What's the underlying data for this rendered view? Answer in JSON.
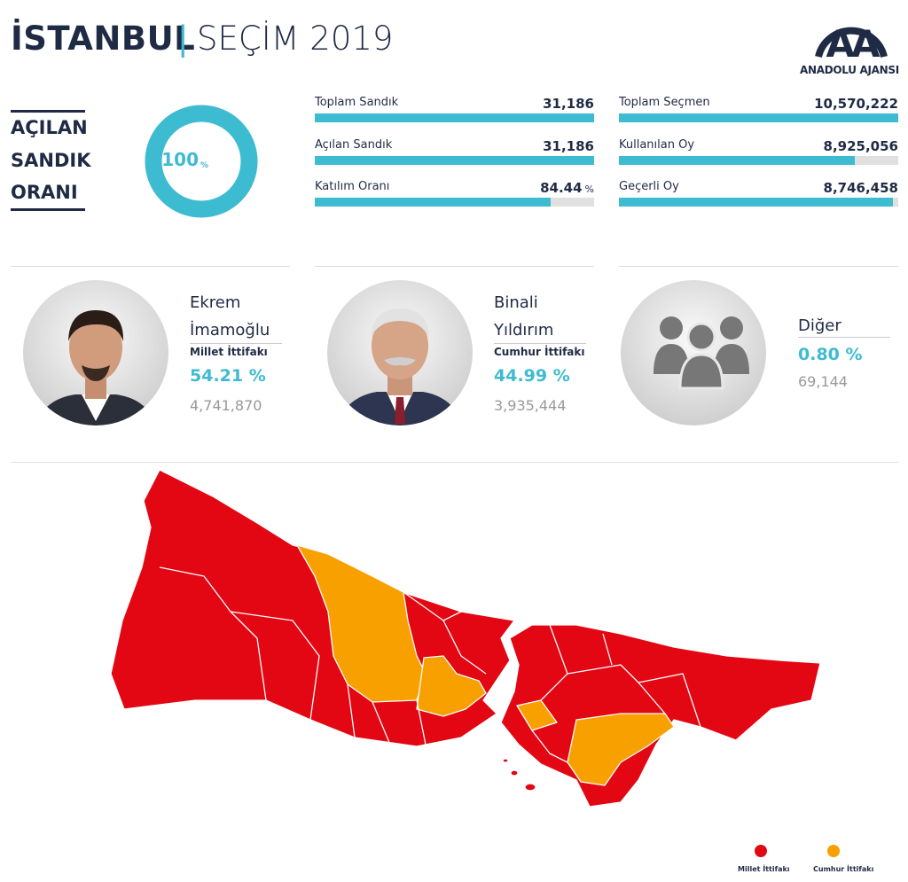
{
  "header": {
    "title": "İSTANBUL",
    "separator": "|",
    "subtitle": "SEÇİM 2019",
    "logo": {
      "mark": "AA",
      "name": "ANADOLU AJANSI"
    }
  },
  "opened": {
    "label_lines": [
      "AÇILAN",
      "SANDIK",
      "ORANI"
    ],
    "value": 100,
    "unit": "%"
  },
  "stats": [
    [
      {
        "label": "Toplam Sandık",
        "value": 31186,
        "value_label": "31,186"
      },
      {
        "label": "Açılan Sandık",
        "value": 31186,
        "value_label": "31,186"
      },
      {
        "label": "Katılım Oranı",
        "value": 84.44,
        "value_label": "84.44",
        "unit": "%"
      }
    ],
    [
      {
        "label": "Toplam Seçmen",
        "value": 10570222,
        "value_label": "10,570,222"
      },
      {
        "label": "Kullanılan Oy",
        "value": 8925056,
        "value_label": "8,925,056"
      },
      {
        "label": "Geçerli Oy",
        "value": 8746458,
        "value_label": "8,746,458"
      }
    ]
  ],
  "candidates": [
    {
      "name_lines": [
        "Ekrem",
        "İmamoğlu"
      ],
      "alliance": "Millet İttifakı",
      "percent": "54.21 %",
      "votes": "4,741,870"
    },
    {
      "name_lines": [
        "Binali",
        "Yıldırım"
      ],
      "alliance": "Cumhur İttifakı",
      "percent": "44.99 %",
      "votes": "3,935,444"
    },
    {
      "name_lines": [
        "Diğer"
      ],
      "percent": "0.80 %",
      "votes": "69,144"
    }
  ],
  "legend": [
    {
      "label": "Millet İttifakı",
      "color": "#e30613"
    },
    {
      "label": "Cumhur İttifakı",
      "color": "#f7a000"
    }
  ]
}
